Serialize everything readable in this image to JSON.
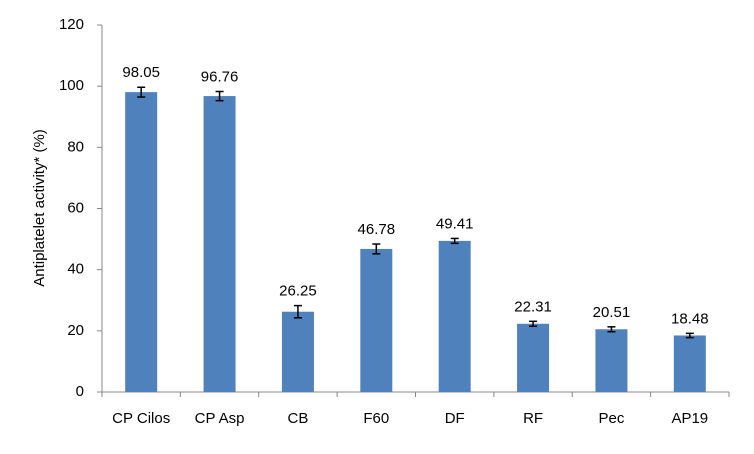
{
  "chart_data": {
    "type": "bar",
    "y_label": "Antiplatelet activity* (%)",
    "categories": [
      "CP Cilos",
      "CP Asp",
      "CB",
      "F60",
      "DF",
      "RF",
      "Pec",
      "AP19"
    ],
    "values": [
      98.05,
      96.76,
      26.25,
      46.78,
      49.41,
      22.31,
      20.51,
      18.48
    ],
    "errors": [
      1.6,
      1.5,
      2.0,
      1.6,
      0.8,
      0.8,
      0.8,
      0.7
    ],
    "color": "#4f81bd",
    "ylim": [
      0,
      120
    ],
    "yticks": [
      0,
      20,
      40,
      60,
      80,
      100,
      120
    ],
    "grid": false
  }
}
